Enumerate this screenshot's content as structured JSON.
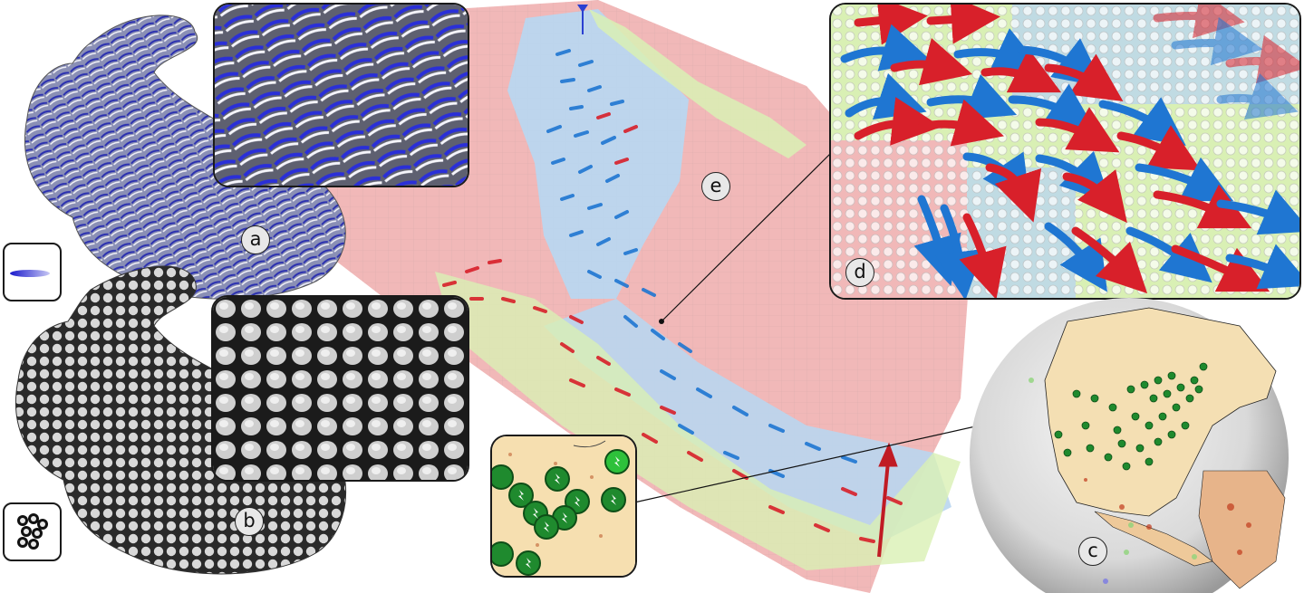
{
  "figure": {
    "panels": [
      {
        "id": "a",
        "label": "a",
        "subject": "bunny-vector-field-texture"
      },
      {
        "id": "b",
        "label": "b",
        "subject": "bunny-cellular-texture"
      },
      {
        "id": "c",
        "label": "c",
        "subject": "globe-north-america-markers"
      },
      {
        "id": "d",
        "label": "d",
        "subject": "arrow-field-closeup"
      },
      {
        "id": "e",
        "label": "e",
        "subject": "terrain-arrow-flow"
      }
    ],
    "colors": {
      "arrow_red": "#d8202a",
      "arrow_blue": "#1f76d2",
      "cell_pink": "#f1b8b8",
      "cell_blue": "#b9d6ef",
      "cell_green": "#d9f0b4",
      "marker_green": "#1f8a2e"
    }
  }
}
